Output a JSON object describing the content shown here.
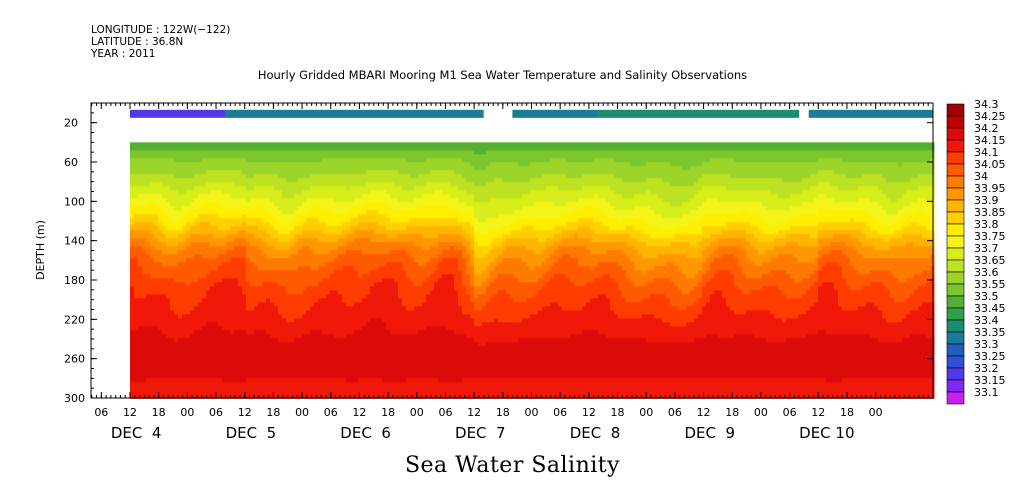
{
  "metadata": {
    "longitude": "LONGITUDE : 122W(−122)",
    "latitude": "LATITUDE : 36.8N",
    "year": "YEAR : 2011"
  },
  "chart_data": {
    "type": "heatmap",
    "title": "Hourly Gridded MBARI Mooring M1 Sea Water Temperature and Salinity Observations",
    "xlabel": "Sea Water Salinity",
    "ylabel": "DEPTH (m)",
    "x_hour_range": [
      0,
      168
    ],
    "ylim": [
      300,
      0
    ],
    "y_ticks": [
      20,
      60,
      100,
      140,
      180,
      220,
      260,
      300
    ],
    "x_hour_ticks": [
      "06",
      "12",
      "18",
      "00",
      "06",
      "12",
      "18",
      "00",
      "06",
      "12",
      "18",
      "00",
      "06",
      "12",
      "18",
      "00",
      "06",
      "12",
      "18",
      "00",
      "06",
      "12",
      "18",
      "00",
      "06",
      "12",
      "18",
      "00"
    ],
    "day_labels": [
      "DEC  4",
      "DEC  5",
      "DEC  6",
      "DEC  7",
      "DEC  8",
      "DEC  9",
      "DEC 10"
    ],
    "colorbar_levels": [
      "34.3",
      "34.25",
      "34.2",
      "34.15",
      "34.1",
      "34.05",
      "34",
      "33.95",
      "33.9",
      "33.85",
      "33.8",
      "33.75",
      "33.7",
      "33.65",
      "33.6",
      "33.55",
      "33.5",
      "33.45",
      "33.4",
      "33.35",
      "33.3",
      "33.25",
      "33.2",
      "33.15",
      "33.1"
    ],
    "colorbar_colors": [
      "#a00000",
      "#c00000",
      "#dd0a0a",
      "#f01808",
      "#ff3c00",
      "#ff5a00",
      "#ff7a00",
      "#ff9800",
      "#ffb400",
      "#ffd000",
      "#ffee00",
      "#f4f418",
      "#d8ee1a",
      "#bce222",
      "#9cd42a",
      "#7cc62e",
      "#54b032",
      "#30a048",
      "#1a8c70",
      "#1a7c96",
      "#2060bc",
      "#3050d8",
      "#5038ec",
      "#8028f4",
      "#c820f0"
    ],
    "surface_rows": {
      "depth": 10,
      "segments": [
        {
          "start_hour": 0,
          "end_hour": 20,
          "value": 33.2
        },
        {
          "start_hour": 20,
          "end_hour": 74,
          "value": 33.35
        },
        {
          "start_hour": 80,
          "end_hour": 98,
          "value": 33.35
        },
        {
          "start_hour": 98,
          "end_hour": 140,
          "value": 33.42
        },
        {
          "start_hour": 142,
          "end_hour": 168,
          "value": 33.35
        }
      ]
    },
    "depth_levels": [
      40,
      50,
      60,
      70,
      80,
      90,
      100,
      110,
      120,
      130,
      140,
      150,
      160,
      170,
      180,
      190,
      200,
      210,
      220,
      230,
      240,
      250,
      260,
      270,
      280,
      290,
      300
    ],
    "profile_salinity": [
      33.5,
      33.56,
      33.6,
      33.63,
      33.66,
      33.7,
      33.73,
      33.77,
      33.81,
      33.86,
      33.92,
      33.97,
      34.01,
      34.04,
      34.07,
      34.1,
      34.12,
      34.14,
      34.16,
      34.18,
      34.2,
      34.22,
      34.24,
      34.22,
      34.2,
      34.19,
      34.19
    ],
    "daily_anomaly": [
      0.08,
      0.04,
      0.03,
      -0.02,
      -0.03,
      -0.01,
      0.02
    ],
    "events": [
      {
        "hour": 10,
        "width": 4,
        "amp": -0.06
      },
      {
        "hour": 33,
        "width": 3,
        "amp": -0.05
      },
      {
        "hour": 52,
        "width": 5,
        "amp": 0.05
      },
      {
        "hour": 66,
        "width": 4,
        "amp": 0.05
      },
      {
        "hour": 73,
        "width": 3,
        "amp": -0.06
      },
      {
        "hour": 90,
        "width": 4,
        "amp": 0.04
      },
      {
        "hour": 98,
        "width": 5,
        "amp": 0.06
      },
      {
        "hour": 117,
        "width": 4,
        "amp": -0.04
      },
      {
        "hour": 123,
        "width": 6,
        "amp": 0.05
      },
      {
        "hour": 146,
        "width": 4,
        "amp": 0.04
      },
      {
        "hour": 160,
        "width": 3,
        "amp": -0.04
      }
    ]
  }
}
